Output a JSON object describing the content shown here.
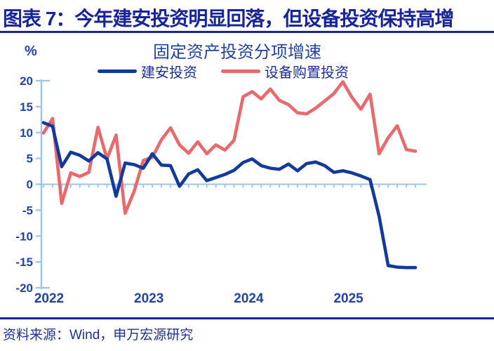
{
  "header": {
    "title": "图表 7：今年建安投资明显回落，但设备投资保持高增"
  },
  "footer": {
    "source": "资料来源：Wind，申万宏源研究"
  },
  "colors": {
    "header_navy": "#18249C",
    "chart_text_blue": "#2143A9",
    "legend_text": "#1B2F99",
    "axis_light_blue": "#9CC3EC",
    "construction_line": "#123A9D",
    "equipment_line": "#E9696C"
  },
  "chart_data": {
    "type": "line",
    "title": "固定资产投资分项增速",
    "unit_label": "%",
    "ylabel": "%",
    "ylim": [
      -20,
      20
    ],
    "y_ticks": [
      20,
      15,
      10,
      5,
      0,
      -5,
      -10,
      -15,
      -20
    ],
    "x_year_labels": [
      "2022",
      "2023",
      "2024",
      "2025"
    ],
    "grid": "zero-line-only",
    "legend_position": "top-center",
    "x": [
      "2022-02",
      "2022-03",
      "2022-04",
      "2022-05",
      "2022-06",
      "2022-07",
      "2022-08",
      "2022-09",
      "2022-10",
      "2022-11",
      "2022-12",
      "2023-02",
      "2023-03",
      "2023-04",
      "2023-05",
      "2023-06",
      "2023-07",
      "2023-08",
      "2023-09",
      "2023-10",
      "2023-11",
      "2023-12",
      "2024-02",
      "2024-03",
      "2024-04",
      "2024-05",
      "2024-06",
      "2024-07",
      "2024-08",
      "2024-09",
      "2024-10",
      "2024-11",
      "2024-12",
      "2025-02",
      "2025-03",
      "2025-04",
      "2025-05",
      "2025-06",
      "2025-07",
      "2025-08",
      "2025-09",
      "2025-10"
    ],
    "series": [
      {
        "name": "建安投资",
        "color": "#123A9D",
        "values": [
          11.9,
          11.2,
          3.4,
          6.2,
          5.6,
          4.5,
          6.1,
          4.9,
          -2.3,
          4.1,
          3.8,
          3.1,
          5.9,
          3.7,
          3.6,
          -0.4,
          2.0,
          2.8,
          0.7,
          1.3,
          1.9,
          2.7,
          4.2,
          4.9,
          3.6,
          3.1,
          2.9,
          3.9,
          2.6,
          4.0,
          4.3,
          3.6,
          2.3,
          2.6,
          2.2,
          1.6,
          0.9,
          -6.2,
          -15.7,
          -16.0,
          -16.1,
          -16.1
        ]
      },
      {
        "name": "设备购置投资",
        "color": "#E9696C",
        "values": [
          9.9,
          12.7,
          -3.7,
          2.2,
          1.5,
          2.3,
          11.0,
          4.9,
          9.5,
          -5.6,
          -1.3,
          4.6,
          5.2,
          8.6,
          10.9,
          7.6,
          6.0,
          8.2,
          5.9,
          7.6,
          6.6,
          8.5,
          16.9,
          17.9,
          16.5,
          18.4,
          16.2,
          15.4,
          13.8,
          13.6,
          14.7,
          16.1,
          17.5,
          19.8,
          16.8,
          14.5,
          17.4,
          5.9,
          9.0,
          11.3,
          6.7,
          6.4
        ]
      }
    ]
  }
}
